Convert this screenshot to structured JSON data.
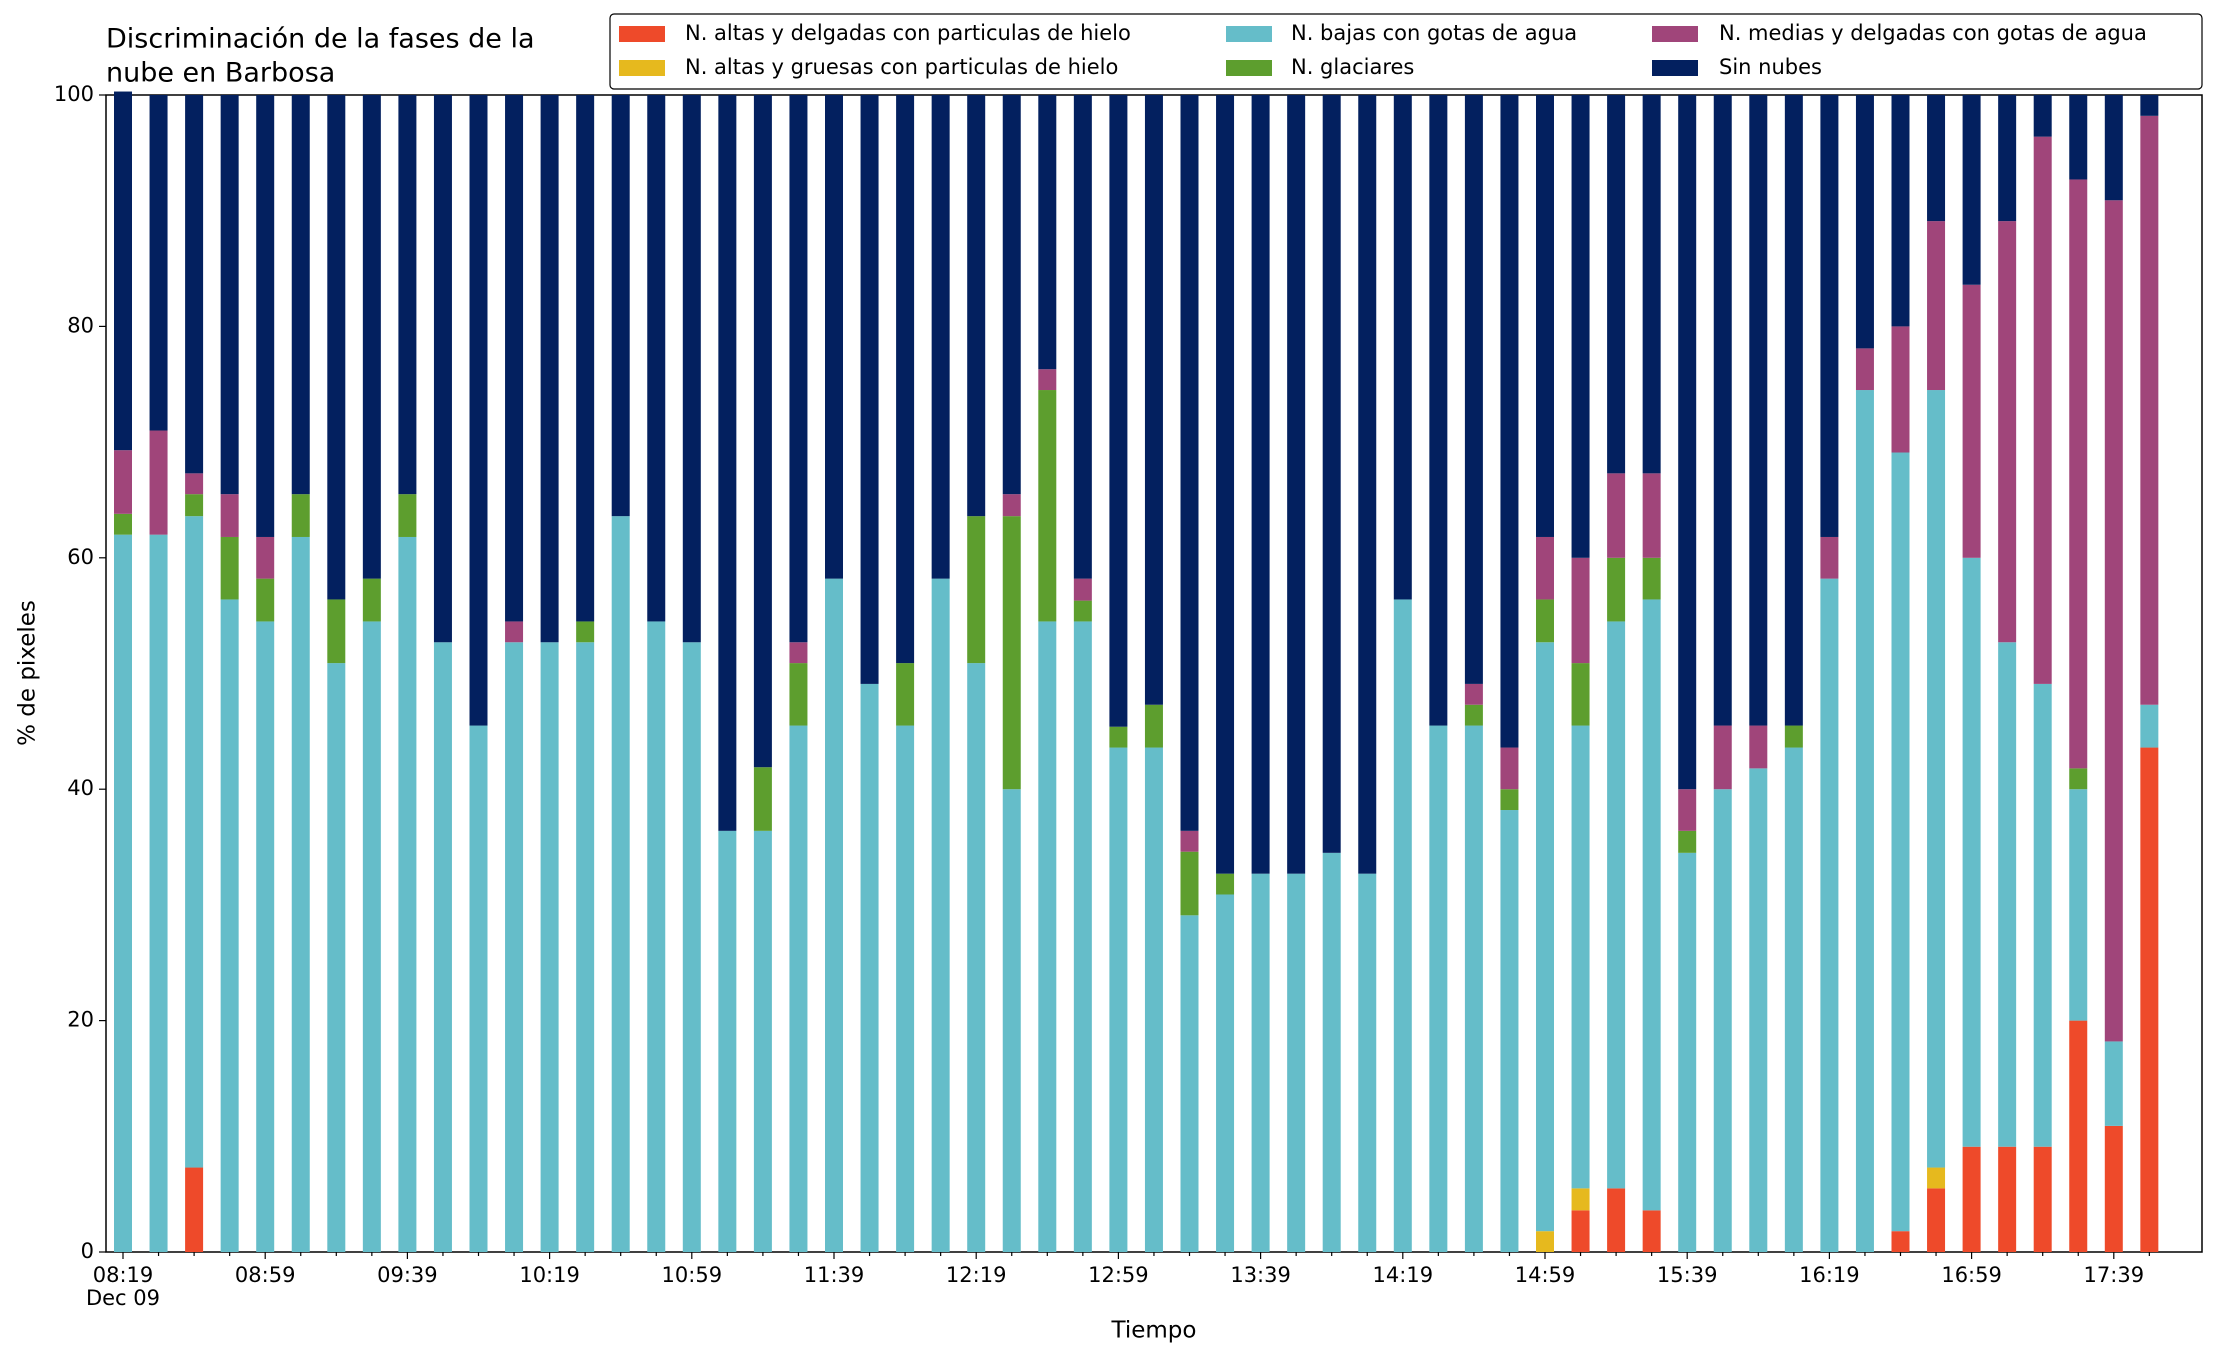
{
  "chart_data": {
    "type": "stacked_bar",
    "title": [
      "Discriminación de la fases de la",
      "nube en Barbosa"
    ],
    "xlabel": "Tiempo",
    "ylabel": "% de pixeles",
    "categories": [
      "08:19",
      null,
      null,
      null,
      "08:59",
      null,
      null,
      null,
      "09:39",
      null,
      null,
      null,
      "10:19",
      null,
      null,
      null,
      "10:59",
      null,
      null,
      null,
      "11:39",
      null,
      null,
      null,
      "12:19",
      null,
      null,
      null,
      "12:59",
      null,
      null,
      null,
      "13:39",
      null,
      null,
      null,
      "14:19",
      null,
      null,
      null,
      "14:59",
      null,
      null,
      null,
      "15:39",
      null,
      null,
      null,
      "16:19",
      null,
      null,
      null,
      "16:59",
      null,
      null,
      null,
      "17:39",
      null
    ],
    "date_label": "Dec 09",
    "ylim": [
      0,
      100
    ],
    "yticks": [
      0,
      20,
      40,
      60,
      80,
      100
    ],
    "series": [
      {
        "name": "N. altas y delgadas con particulas de hielo",
        "color": "#ee4a2a",
        "values": [
          0,
          0,
          7.3,
          0,
          0,
          0,
          0,
          0,
          0,
          0,
          0,
          0,
          0,
          0,
          0,
          0,
          0,
          0,
          0,
          0,
          0,
          0,
          0,
          0,
          0,
          0,
          0,
          0,
          0,
          0,
          0,
          0,
          0,
          0,
          0,
          0,
          0,
          0,
          0,
          0,
          0,
          3.6,
          5.5,
          3.6,
          0,
          0,
          0,
          0,
          0,
          0,
          1.8,
          5.5,
          9.1,
          9.1,
          9.1,
          20,
          10.9,
          43.6
        ]
      },
      {
        "name": "N. altas y gruesas con particulas de hielo",
        "color": "#e6b91e",
        "values": [
          0,
          0,
          0,
          0,
          0,
          0,
          0,
          0,
          0,
          0,
          0,
          0,
          0,
          0,
          0,
          0,
          0,
          0,
          0,
          0,
          0,
          0,
          0,
          0,
          0,
          0,
          0,
          0,
          0,
          0,
          0,
          0,
          0,
          0,
          0,
          0,
          0,
          0,
          0,
          0,
          1.8,
          1.9,
          0,
          0,
          0,
          0,
          0,
          0,
          0,
          0,
          0,
          1.8,
          0,
          0,
          0,
          0,
          0,
          0
        ]
      },
      {
        "name": "N. bajas con gotas de agua",
        "color": "#65bdc9",
        "values": [
          62,
          62,
          56.3,
          56.4,
          54.5,
          61.8,
          50.9,
          54.5,
          61.8,
          52.7,
          45.5,
          52.7,
          52.7,
          52.7,
          63.6,
          54.5,
          52.7,
          36.4,
          36.4,
          45.5,
          58.2,
          49.1,
          45.5,
          58.2,
          50.9,
          40,
          54.5,
          54.5,
          43.6,
          43.6,
          29.1,
          30.9,
          32.7,
          32.7,
          34.5,
          32.7,
          56.4,
          45.5,
          45.5,
          38.2,
          50.9,
          40,
          49,
          52.8,
          34.5,
          40,
          41.8,
          43.6,
          58.2,
          74.5,
          67.3,
          67.2,
          50.9,
          43.6,
          40,
          20,
          7.3,
          3.7
        ]
      },
      {
        "name": "N. glaciares",
        "color": "#5d9e2e",
        "values": [
          1.8,
          0,
          1.9,
          5.4,
          3.7,
          3.7,
          5.5,
          3.7,
          3.7,
          0,
          0,
          0,
          0,
          1.8,
          0,
          0,
          0,
          0,
          5.5,
          5.4,
          0,
          0,
          5.4,
          0,
          12.7,
          23.6,
          20,
          1.8,
          1.8,
          3.7,
          5.5,
          1.8,
          0,
          0,
          0,
          0,
          0,
          0,
          1.8,
          1.8,
          3.7,
          5.4,
          5.5,
          3.6,
          1.9,
          0,
          0,
          1.9,
          0,
          0,
          0,
          0,
          0,
          0,
          0,
          1.8,
          0,
          0
        ]
      },
      {
        "name": "N. medias y delgadas con gotas de agua",
        "color": "#a0457a",
        "values": [
          5.5,
          9,
          1.8,
          3.7,
          3.6,
          0,
          0,
          0,
          0,
          0,
          0,
          1.8,
          0,
          0,
          0,
          0,
          0,
          0,
          0,
          1.8,
          0,
          0,
          0,
          0,
          0,
          1.9,
          1.8,
          1.9,
          0,
          0,
          1.8,
          0,
          0,
          0,
          0,
          0,
          0,
          0,
          1.8,
          3.6,
          5.4,
          9.1,
          7.3,
          7.3,
          3.6,
          5.5,
          3.7,
          0,
          3.6,
          3.6,
          10.9,
          14.6,
          23.6,
          36.4,
          47.3,
          50.9,
          72.7,
          50.9
        ]
      },
      {
        "name": "Sin nubes",
        "color": "#03205f",
        "values": [
          31,
          29,
          32.7,
          34.5,
          38.2,
          34.5,
          43.6,
          41.8,
          34.5,
          47.3,
          54.5,
          45.5,
          47.3,
          45.5,
          36.4,
          45.5,
          47.3,
          63.6,
          58.1,
          47.3,
          41.8,
          50.9,
          49.1,
          41.8,
          36.4,
          34.5,
          23.7,
          41.8,
          54.6,
          52.7,
          63.6,
          67.3,
          67.3,
          67.3,
          65.5,
          67.3,
          43.6,
          54.5,
          50.9,
          56.4,
          38.2,
          40,
          32.7,
          32.7,
          60,
          54.5,
          54.5,
          54.5,
          38.2,
          21.9,
          20,
          10.9,
          16.4,
          10.9,
          3.6,
          7.3,
          9.1,
          1.8
        ]
      }
    ]
  }
}
